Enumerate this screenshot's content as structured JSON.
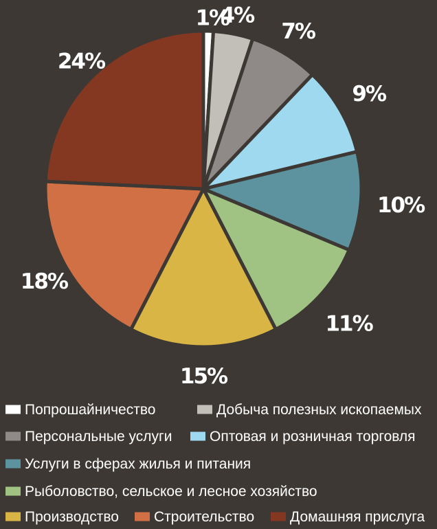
{
  "chart_data": {
    "type": "pie",
    "slices": [
      {
        "label": "Попрошайничество",
        "value": 1,
        "value_label": "1%",
        "color": "#ffffff"
      },
      {
        "label": "Добыча полезных ископаемых",
        "value": 4,
        "value_label": "4%",
        "color": "#c2bfb8"
      },
      {
        "label": "Персональные услуги",
        "value": 7,
        "value_label": "7%",
        "color": "#8f8a87"
      },
      {
        "label": "Оптовая и розничная торговля",
        "value": 9,
        "value_label": "9%",
        "color": "#9fd9f0"
      },
      {
        "label": "Услуги в сферах жилья и питания",
        "value": 10,
        "value_label": "10%",
        "color": "#5d939f"
      },
      {
        "label": "Рыболовство, сельское и лесное хозяйство",
        "value": 11,
        "value_label": "11%",
        "color": "#a0c283"
      },
      {
        "label": "Производство",
        "value": 15,
        "value_label": "15%",
        "color": "#d8b544"
      },
      {
        "label": "Строительство",
        "value": 18,
        "value_label": "18%",
        "color": "#d07044"
      },
      {
        "label": "Домашняя прислуга",
        "value": 24,
        "value_label": "24%",
        "color": "#843822"
      }
    ],
    "legend_placement": "bottom",
    "start_angle": "12 o'clock",
    "direction": "clockwise"
  },
  "colors": {
    "background": "#3d3833",
    "separator": "#3d3833",
    "text": "#ffffff"
  }
}
